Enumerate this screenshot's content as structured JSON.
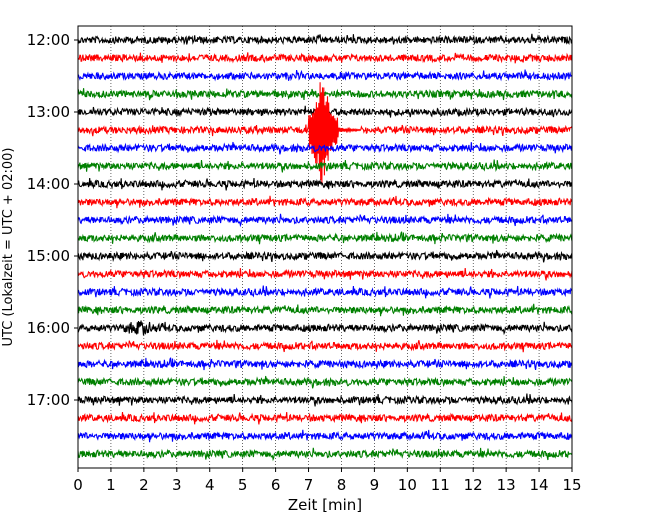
{
  "chart_data": {
    "type": "line",
    "title": "",
    "xlabel": "Zeit  [min]",
    "ylabel": "UTC (Lokalzeit = UTC + 02:00)",
    "xlim": [
      0,
      15
    ],
    "x_ticks": [
      "0",
      "1",
      "2",
      "3",
      "4",
      "5",
      "6",
      "7",
      "8",
      "9",
      "10",
      "11",
      "12",
      "13",
      "14",
      "15"
    ],
    "y_tick_labels": [
      "12:00",
      "13:00",
      "14:00",
      "15:00",
      "16:00",
      "17:00"
    ],
    "grid": "vertical dotted at each minute",
    "trace_interval_min": 15,
    "traces": [
      {
        "start": "12:00",
        "color": "#000000"
      },
      {
        "start": "12:15",
        "color": "#ff0000"
      },
      {
        "start": "12:30",
        "color": "#0000ff"
      },
      {
        "start": "12:45",
        "color": "#008000"
      },
      {
        "start": "13:00",
        "color": "#000000"
      },
      {
        "start": "13:15",
        "color": "#ff0000",
        "event": {
          "start_min": 7.0,
          "peak_min": 7.4,
          "end_min": 8.6,
          "peak_amplitude": "large"
        }
      },
      {
        "start": "13:30",
        "color": "#0000ff"
      },
      {
        "start": "13:45",
        "color": "#008000"
      },
      {
        "start": "14:00",
        "color": "#000000"
      },
      {
        "start": "14:15",
        "color": "#ff0000"
      },
      {
        "start": "14:30",
        "color": "#0000ff"
      },
      {
        "start": "14:45",
        "color": "#008000"
      },
      {
        "start": "15:00",
        "color": "#000000"
      },
      {
        "start": "15:15",
        "color": "#ff0000"
      },
      {
        "start": "15:30",
        "color": "#0000ff"
      },
      {
        "start": "15:45",
        "color": "#008000"
      },
      {
        "start": "16:00",
        "color": "#000000",
        "burst": {
          "start_min": 1.3,
          "end_min": 2.5
        }
      },
      {
        "start": "16:15",
        "color": "#ff0000"
      },
      {
        "start": "16:30",
        "color": "#0000ff"
      },
      {
        "start": "16:45",
        "color": "#008000"
      },
      {
        "start": "17:00",
        "color": "#000000"
      },
      {
        "start": "17:15",
        "color": "#ff0000"
      },
      {
        "start": "17:30",
        "color": "#0000ff"
      },
      {
        "start": "17:45",
        "color": "#008000"
      }
    ]
  }
}
